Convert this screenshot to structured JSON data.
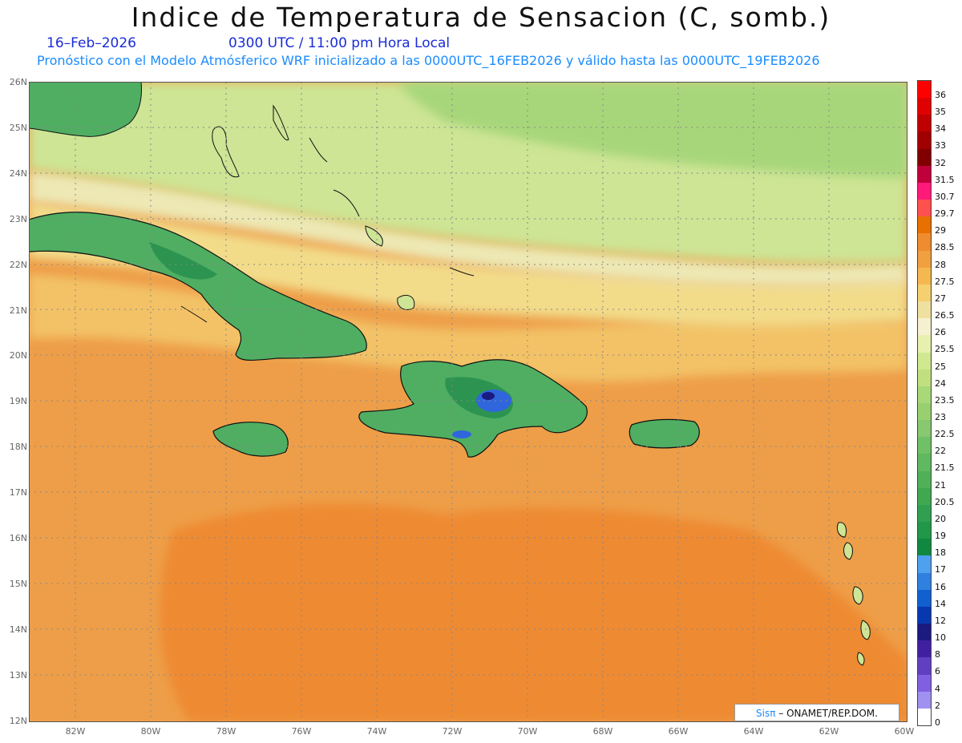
{
  "header": {
    "title": "Indice de Temperatura de Sensacion (C, somb.)",
    "date": "16–Feb–2026",
    "time": "0300 UTC / 11:00 pm Hora Local",
    "forecast_line": "Pronóstico con el Modelo Atmósferico WRF inicializado a las 0000UTC_16FEB2026 y válido hasta las  0000UTC_19FEB2026"
  },
  "axes": {
    "lat_labels": [
      "26N",
      "25N",
      "24N",
      "23N",
      "22N",
      "21N",
      "20N",
      "19N",
      "18N",
      "17N",
      "16N",
      "15N",
      "14N",
      "13N",
      "12N"
    ],
    "lon_labels": [
      "82W",
      "80W",
      "78W",
      "76W",
      "74W",
      "72W",
      "70W",
      "68W",
      "66W",
      "64W",
      "62W",
      "60W"
    ]
  },
  "colorbar": {
    "labels": [
      "36",
      "35",
      "34",
      "33",
      "32",
      "31.5",
      "30.7",
      "29.7",
      "29",
      "28.5",
      "28",
      "27.5",
      "27",
      "26.5",
      "26",
      "25.5",
      "25",
      "24",
      "23.5",
      "23",
      "22.5",
      "22",
      "21.5",
      "21",
      "20.5",
      "20",
      "19",
      "18",
      "17",
      "16",
      "14",
      "12",
      "10",
      "8",
      "6",
      "4",
      "2",
      "0"
    ],
    "colors": [
      "#ff0000",
      "#e00000",
      "#c00000",
      "#a00000",
      "#800000",
      "#c0003a",
      "#ff1a7a",
      "#ff5050",
      "#e87000",
      "#f08c30",
      "#f0a040",
      "#f5b850",
      "#f5d070",
      "#f0e0a0",
      "#f5f0d0",
      "#e8f0b0",
      "#d0e890",
      "#c0e080",
      "#a8d878",
      "#98d070",
      "#88c870",
      "#70c068",
      "#60b860",
      "#50b058",
      "#40a850",
      "#30a050",
      "#209848",
      "#108840",
      "#50a0f0",
      "#3080e0",
      "#1060d0",
      "#0838b0",
      "#1a1a80",
      "#4020a0",
      "#6040c0",
      "#8060e0",
      "#a090f0",
      "#ffffff"
    ]
  },
  "map": {
    "colors": {
      "sea_warm": "#ee9e48",
      "sea_hot": "#ee8a32",
      "sea_mild": "#f3c266",
      "sea_cool": "#f2dc8a",
      "north_band": "#ede8b4",
      "north_green": "#cde595",
      "far_north": "#a7d67a",
      "land_green": "#4fae62",
      "land_dark": "#2c9450",
      "mountain_blue": "#3066dc",
      "mountain_navy": "#1a1a80"
    }
  },
  "credit": {
    "brand": "Sisπ",
    "text": " – ONAMET/REP.DOM."
  }
}
